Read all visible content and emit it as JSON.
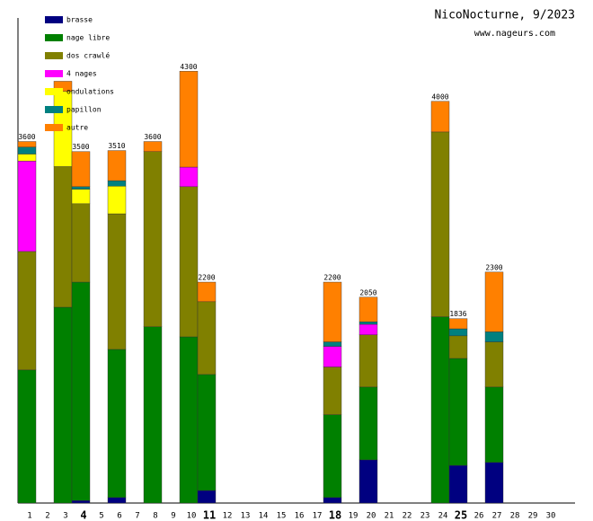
{
  "chart_data": {
    "type": "stacked_bar",
    "title": "NicoNocturne, 9/2023",
    "subtitle": "www.nageurs.com",
    "categories": [
      "1",
      "2",
      "3",
      "4",
      "5",
      "6",
      "7",
      "8",
      "9",
      "10",
      "11",
      "12",
      "13",
      "14",
      "15",
      "16",
      "17",
      "18",
      "19",
      "20",
      "21",
      "22",
      "23",
      "24",
      "25",
      "26",
      "27",
      "28",
      "29",
      "30"
    ],
    "emphasized_categories": [
      3,
      10,
      17,
      24
    ],
    "ylim": [
      0,
      4830
    ],
    "series": [
      {
        "name": "brasse",
        "color": "#000080",
        "values": [
          0,
          0,
          0,
          25,
          0,
          55,
          0,
          0,
          0,
          0,
          125,
          0,
          0,
          0,
          0,
          0,
          0,
          55,
          0,
          430,
          0,
          0,
          0,
          0,
          375,
          0,
          405,
          0,
          0,
          0
        ]
      },
      {
        "name": "nage libre",
        "color": "#008000",
        "values": [
          1325,
          0,
          1950,
          2175,
          0,
          1475,
          0,
          1755,
          0,
          1655,
          1155,
          0,
          0,
          0,
          0,
          0,
          0,
          825,
          0,
          725,
          0,
          0,
          0,
          1855,
          1065,
          0,
          750,
          0,
          0,
          0
        ]
      },
      {
        "name": "dos crawlé",
        "color": "#808000",
        "values": [
          1180,
          0,
          1400,
          780,
          0,
          1350,
          0,
          1745,
          0,
          1495,
          725,
          0,
          0,
          0,
          0,
          0,
          0,
          475,
          0,
          520,
          0,
          0,
          0,
          1840,
          225,
          0,
          450,
          0,
          0,
          0
        ]
      },
      {
        "name": "4 nages",
        "color": "#ff00ff",
        "values": [
          900,
          0,
          0,
          0,
          0,
          0,
          0,
          0,
          0,
          195,
          0,
          0,
          0,
          0,
          0,
          0,
          0,
          205,
          0,
          105,
          0,
          0,
          0,
          0,
          0,
          0,
          0,
          0,
          0,
          0
        ]
      },
      {
        "name": "ondulations",
        "color": "#ffff00",
        "values": [
          70,
          0,
          750,
          145,
          0,
          275,
          0,
          0,
          0,
          0,
          0,
          0,
          0,
          0,
          0,
          0,
          0,
          0,
          0,
          0,
          0,
          0,
          0,
          0,
          0,
          0,
          0,
          0,
          0,
          0
        ]
      },
      {
        "name": "papillon",
        "color": "#008080",
        "values": [
          70,
          0,
          0,
          25,
          0,
          55,
          0,
          0,
          0,
          0,
          0,
          0,
          0,
          0,
          0,
          0,
          0,
          45,
          0,
          25,
          0,
          0,
          0,
          0,
          70,
          0,
          100,
          0,
          0,
          0
        ]
      },
      {
        "name": "autre",
        "color": "#ff8000",
        "values": [
          55,
          0,
          100,
          350,
          0,
          300,
          0,
          100,
          0,
          955,
          195,
          0,
          0,
          0,
          0,
          0,
          0,
          595,
          0,
          245,
          0,
          0,
          0,
          305,
          101,
          0,
          595,
          0,
          0,
          0
        ]
      }
    ],
    "totals": [
      3600,
      null,
      null,
      3500,
      null,
      3510,
      null,
      3600,
      null,
      4300,
      2200,
      null,
      null,
      null,
      null,
      null,
      null,
      2200,
      null,
      2050,
      null,
      null,
      null,
      4000,
      1836,
      null,
      2300,
      null,
      null,
      null
    ]
  }
}
